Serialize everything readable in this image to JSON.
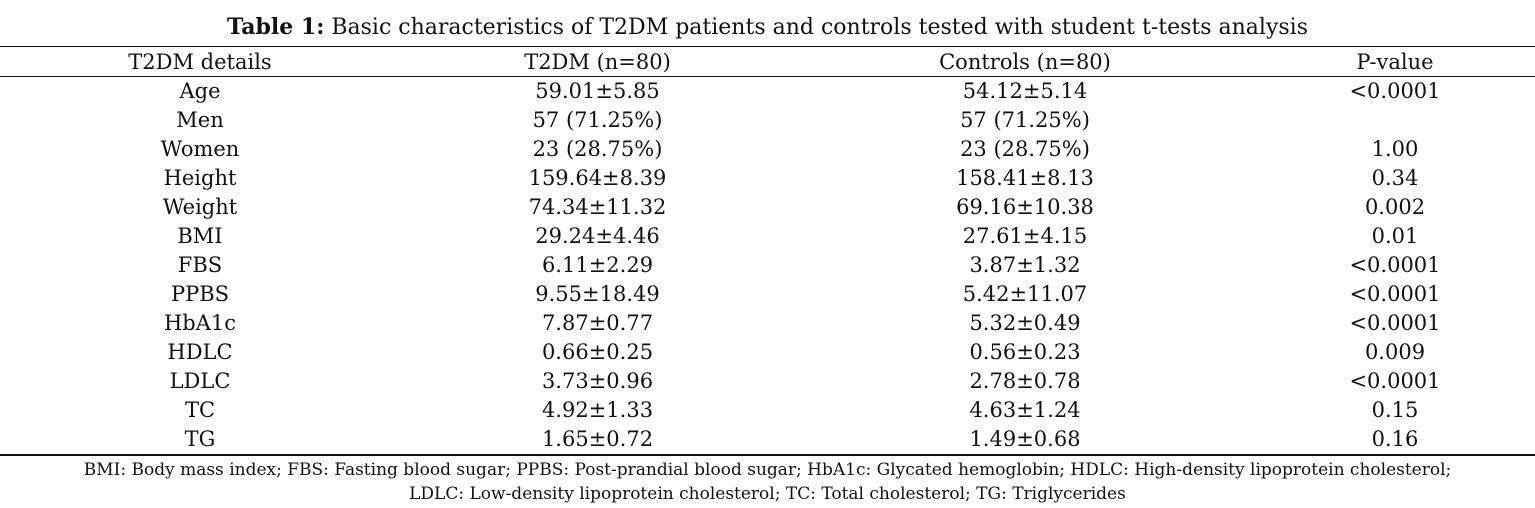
{
  "caption": {
    "label": "Table 1:",
    "text": "Basic characteristics of T2DM patients and controls tested with student t-tests analysis"
  },
  "table": {
    "headers": [
      "T2DM details",
      "T2DM (n=80)",
      "Controls (n=80)",
      "P-value"
    ],
    "rows": [
      [
        "Age",
        "59.01±5.85",
        "54.12±5.14",
        "<0.0001"
      ],
      [
        "Men",
        "57 (71.25%)",
        "57 (71.25%)",
        ""
      ],
      [
        "Women",
        "23 (28.75%)",
        "23 (28.75%)",
        "1.00"
      ],
      [
        "Height",
        "159.64±8.39",
        "158.41±8.13",
        "0.34"
      ],
      [
        "Weight",
        "74.34±11.32",
        "69.16±10.38",
        "0.002"
      ],
      [
        "BMI",
        "29.24±4.46",
        "27.61±4.15",
        "0.01"
      ],
      [
        "FBS",
        "6.11±2.29",
        "3.87±1.32",
        "<0.0001"
      ],
      [
        "PPBS",
        "9.55±18.49",
        "5.42±11.07",
        "<0.0001"
      ],
      [
        "HbA1c",
        "7.87±0.77",
        "5.32±0.49",
        "<0.0001"
      ],
      [
        "HDLC",
        "0.66±0.25",
        "0.56±0.23",
        "0.009"
      ],
      [
        "LDLC",
        "3.73±0.96",
        "2.78±0.78",
        "<0.0001"
      ],
      [
        "TC",
        "4.92±1.33",
        "4.63±1.24",
        "0.15"
      ],
      [
        "TG",
        "1.65±0.72",
        "1.49±0.68",
        "0.16"
      ]
    ]
  },
  "footnote": {
    "line1": "BMI: Body mass index; FBS: Fasting blood sugar; PPBS: Post-prandial blood sugar; HbA1c: Glycated hemoglobin; HDLC: High-density lipoprotein cholesterol;",
    "line2": "LDLC: Low-density lipoprotein cholesterol; TC: Total cholesterol; TG: Triglycerides"
  }
}
